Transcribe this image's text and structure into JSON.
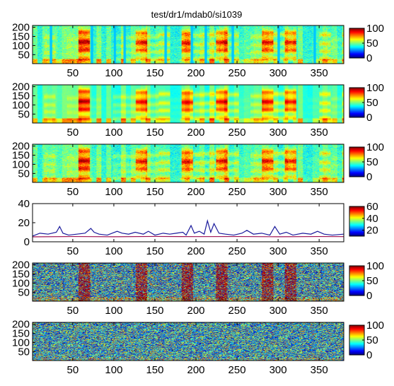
{
  "figure": {
    "title": "test/dr1/mdab0/si1039",
    "colormap": "jet"
  },
  "chart_data": [
    {
      "type": "heatmap",
      "colormap": "jet",
      "x_ticks": [
        50,
        100,
        150,
        200,
        250,
        300,
        350
      ],
      "xlim": [
        1,
        380
      ],
      "y_ticks": [
        50,
        100,
        150,
        200
      ],
      "ylim": [
        1,
        210
      ],
      "clim": [
        0,
        100
      ],
      "colorbar_ticks": [
        0,
        50,
        100
      ],
      "texture": "spectrogram",
      "segment_boundaries": [
        22,
        72,
        100,
        112,
        162,
        194,
        211,
        244,
        300,
        344
      ]
    },
    {
      "type": "heatmap",
      "colormap": "jet",
      "x_ticks": [
        50,
        100,
        150,
        200,
        250,
        300,
        350
      ],
      "xlim": [
        1,
        380
      ],
      "y_ticks": [
        50,
        100,
        150,
        200
      ],
      "ylim": [
        1,
        210
      ],
      "clim": [
        0,
        100
      ],
      "colorbar_ticks": [
        0,
        50,
        100
      ],
      "texture": "smoothed spectrogram"
    },
    {
      "type": "heatmap",
      "colormap": "jet",
      "x_ticks": [
        50,
        100,
        150,
        200,
        250,
        300,
        350
      ],
      "xlim": [
        1,
        380
      ],
      "y_ticks": [
        50,
        100,
        150,
        200
      ],
      "ylim": [
        1,
        210
      ],
      "clim": [
        0,
        100
      ],
      "colorbar_ticks": [
        0,
        50,
        100
      ],
      "texture": "spectrogram"
    },
    {
      "type": "line",
      "xlim": [
        1,
        380
      ],
      "ylim": [
        0,
        40
      ],
      "x_ticks": [
        50,
        100,
        150,
        200,
        250,
        300,
        350
      ],
      "y_ticks": [
        0,
        20,
        40
      ],
      "colorbar_clim": [
        10,
        60
      ],
      "colorbar_ticks": [
        20,
        40,
        60
      ],
      "series": [
        {
          "color": "#1a1a9c",
          "x": [
            0,
            10,
            20,
            30,
            34,
            38,
            45,
            55,
            65,
            72,
            76,
            82,
            92,
            104,
            110,
            118,
            126,
            136,
            142,
            150,
            160,
            168,
            176,
            184,
            188,
            194,
            198,
            204,
            210,
            214,
            218,
            222,
            228,
            236,
            246,
            256,
            262,
            270,
            280,
            290,
            296,
            302,
            310,
            318,
            330,
            340,
            348,
            356,
            366,
            380
          ],
          "y": [
            6,
            9,
            8,
            10,
            16,
            9,
            7,
            8,
            9,
            14,
            10,
            8,
            7,
            11,
            9,
            8,
            10,
            8,
            11,
            7,
            9,
            8,
            9,
            10,
            7,
            17,
            9,
            11,
            8,
            22,
            10,
            19,
            9,
            8,
            7,
            9,
            12,
            8,
            9,
            7,
            16,
            8,
            10,
            7,
            9,
            8,
            11,
            8,
            7,
            8
          ]
        },
        {
          "color": "#a01050",
          "x": [
            0,
            50,
            100,
            150,
            200,
            250,
            300,
            350,
            380
          ],
          "y": [
            5.2,
            5.5,
            5.3,
            5.6,
            5.4,
            5.5,
            5.3,
            5.5,
            5.4
          ]
        }
      ]
    },
    {
      "type": "heatmap",
      "colormap": "jet",
      "x_ticks": [
        50,
        100,
        150,
        200,
        250,
        300,
        350
      ],
      "xlim": [
        1,
        380
      ],
      "y_ticks": [
        50,
        100,
        150,
        200
      ],
      "ylim": [
        1,
        210
      ],
      "clim": [
        0,
        100
      ],
      "colorbar_ticks": [
        0,
        50,
        100
      ],
      "texture": "noisy with dark red streaks"
    },
    {
      "type": "heatmap",
      "colormap": "jet",
      "x_ticks": [
        50,
        100,
        150,
        200,
        250,
        300,
        350
      ],
      "xlim": [
        1,
        380
      ],
      "y_ticks": [
        50,
        100,
        150,
        200
      ],
      "ylim": [
        1,
        210
      ],
      "clim": [
        0,
        100
      ],
      "colorbar_ticks": [
        0,
        50,
        100
      ],
      "texture": "noise"
    }
  ]
}
